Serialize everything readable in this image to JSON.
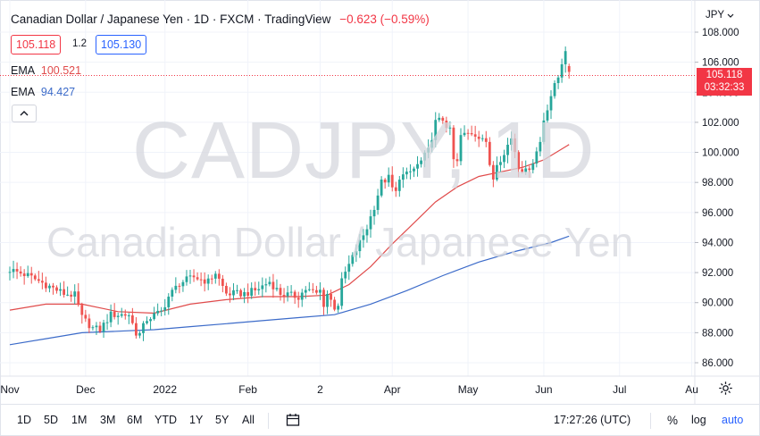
{
  "header": {
    "title": "Canadian Dollar / Japanese Yen · 1D · FXCM · TradingView",
    "change": "−0.623 (−0.59%)"
  },
  "order": {
    "sell": "105.118",
    "spread": "1.2",
    "buy": "105.130"
  },
  "indicators": [
    {
      "label": "EMA",
      "value": "100.521",
      "color": "#e04b4b"
    },
    {
      "label": "EMA",
      "value": "94.427",
      "color": "#3c6bc9"
    }
  ],
  "collapse_icon": "chevron-up-icon",
  "watermark": {
    "symbol": "CADJPY, 1D",
    "name": "Canadian Dollar / Japanese Yen"
  },
  "currency_label": "JPY",
  "last_price": {
    "price": "105.118",
    "countdown": "03:32:33"
  },
  "settings_icon": "gear-icon",
  "bottom_bar": {
    "ranges": [
      "1D",
      "5D",
      "1M",
      "3M",
      "6M",
      "YTD",
      "1Y",
      "5Y",
      "All"
    ],
    "compare_icon": "calendar-range-icon",
    "time": "17:27:26 (UTC)",
    "percent": "%",
    "log": "log",
    "auto": "auto"
  },
  "chart_data": {
    "type": "candlestick",
    "symbol": "CADJPY",
    "interval": "1D",
    "y_ticks": [
      "86.000",
      "88.000",
      "90.000",
      "92.000",
      "94.000",
      "96.000",
      "98.000",
      "100.000",
      "102.000",
      "104.000",
      "106.000",
      "108.000"
    ],
    "ylim": [
      85.0,
      108.5
    ],
    "x_ticks": [
      {
        "label": "Nov",
        "t": 0
      },
      {
        "label": "Dec",
        "t": 21
      },
      {
        "label": "2022",
        "t": 43
      },
      {
        "label": "Feb",
        "t": 66
      },
      {
        "label": "2",
        "t": 86
      },
      {
        "label": "Apr",
        "t": 106
      },
      {
        "label": "May",
        "t": 127
      },
      {
        "label": "Jun",
        "t": 148
      },
      {
        "label": "Jul",
        "t": 169
      },
      {
        "label": "Au",
        "t": 189
      }
    ],
    "candle_count": 156,
    "close_path": [
      [
        0,
        92.2
      ],
      [
        5,
        91.8
      ],
      [
        10,
        91.2
      ],
      [
        15,
        90.6
      ],
      [
        18,
        90.5
      ],
      [
        20,
        89.0
      ],
      [
        23,
        88.3
      ],
      [
        25,
        88.2
      ],
      [
        28,
        89.2
      ],
      [
        33,
        89.2
      ],
      [
        35,
        88.0
      ],
      [
        36,
        87.9
      ],
      [
        38,
        88.9
      ],
      [
        42,
        89.4
      ],
      [
        44,
        90.4
      ],
      [
        47,
        91.3
      ],
      [
        51,
        91.7
      ],
      [
        55,
        91.4
      ],
      [
        57,
        92.0
      ],
      [
        60,
        90.6
      ],
      [
        65,
        90.6
      ],
      [
        68,
        90.8
      ],
      [
        72,
        91.4
      ],
      [
        75,
        90.6
      ],
      [
        80,
        90.4
      ],
      [
        82,
        90.9
      ],
      [
        85,
        90.6
      ],
      [
        86,
        90.8
      ],
      [
        87,
        89.9
      ],
      [
        88,
        90.6
      ],
      [
        90,
        89.7
      ],
      [
        91,
        89.9
      ],
      [
        92,
        91.4
      ],
      [
        93,
        92.0
      ],
      [
        95,
        93.0
      ],
      [
        97,
        94.0
      ],
      [
        99,
        95.0
      ],
      [
        101,
        96.4
      ],
      [
        103,
        98.0
      ],
      [
        105,
        98.3
      ],
      [
        106,
        97.6
      ],
      [
        107,
        97.3
      ],
      [
        108,
        98.4
      ],
      [
        110,
        98.5
      ],
      [
        112,
        98.9
      ],
      [
        114,
        99.4
      ],
      [
        116,
        100.1
      ],
      [
        118,
        102.0
      ],
      [
        120,
        102.2
      ],
      [
        122,
        101.4
      ],
      [
        123,
        99.5
      ],
      [
        124,
        99.3
      ],
      [
        125,
        101.1
      ],
      [
        128,
        101.3
      ],
      [
        131,
        101.0
      ],
      [
        132,
        100.5
      ],
      [
        133,
        99.2
      ],
      [
        134,
        98.3
      ],
      [
        135,
        99.4
      ],
      [
        137,
        99.8
      ],
      [
        138,
        100.5
      ],
      [
        139,
        101.0
      ],
      [
        140,
        100.1
      ],
      [
        141,
        99.1
      ],
      [
        143,
        98.7
      ],
      [
        145,
        99.4
      ],
      [
        147,
        100.7
      ],
      [
        148,
        102.2
      ],
      [
        150,
        103.8
      ],
      [
        152,
        105.0
      ],
      [
        153,
        106.0
      ],
      [
        154,
        106.9
      ],
      [
        155,
        105.118
      ]
    ],
    "series": [
      {
        "name": "EMA",
        "color": "#e04b4b",
        "values": [
          [
            0,
            89.5
          ],
          [
            10,
            89.9
          ],
          [
            20,
            89.9
          ],
          [
            30,
            89.4
          ],
          [
            40,
            89.3
          ],
          [
            50,
            89.9
          ],
          [
            60,
            90.2
          ],
          [
            70,
            90.4
          ],
          [
            80,
            90.4
          ],
          [
            88,
            90.5
          ],
          [
            94,
            91.2
          ],
          [
            100,
            92.4
          ],
          [
            106,
            93.9
          ],
          [
            112,
            95.3
          ],
          [
            118,
            96.7
          ],
          [
            124,
            97.7
          ],
          [
            130,
            98.4
          ],
          [
            136,
            98.7
          ],
          [
            142,
            99.0
          ],
          [
            148,
            99.5
          ],
          [
            155,
            100.521
          ]
        ]
      },
      {
        "name": "EMA",
        "color": "#3c6bc9",
        "values": [
          [
            0,
            87.2
          ],
          [
            10,
            87.6
          ],
          [
            20,
            88.0
          ],
          [
            30,
            88.1
          ],
          [
            40,
            88.2
          ],
          [
            50,
            88.4
          ],
          [
            60,
            88.6
          ],
          [
            70,
            88.8
          ],
          [
            80,
            89.0
          ],
          [
            90,
            89.2
          ],
          [
            100,
            89.9
          ],
          [
            110,
            90.8
          ],
          [
            120,
            91.8
          ],
          [
            130,
            92.7
          ],
          [
            140,
            93.4
          ],
          [
            150,
            94.0
          ],
          [
            155,
            94.427
          ]
        ]
      }
    ],
    "last_price": 105.118,
    "grid": true,
    "colors": {
      "up": "#26a69a",
      "down": "#ef5350"
    }
  }
}
